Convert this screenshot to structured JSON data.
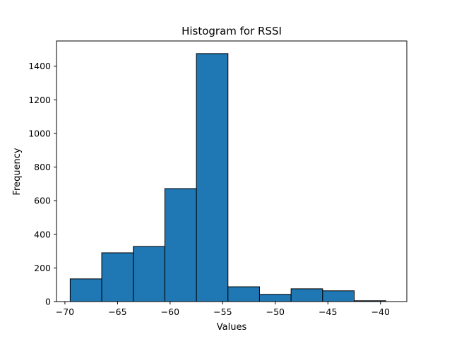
{
  "chart_data": {
    "type": "bar",
    "title": "Histogram for RSSI",
    "xlabel": "Values",
    "ylabel": "Frequency",
    "xlim": [
      -70.8,
      -37.5
    ],
    "ylim": [
      0,
      1550
    ],
    "xticks": [
      -70,
      -65,
      -60,
      -55,
      -50,
      -45,
      -40
    ],
    "yticks": [
      0,
      200,
      400,
      600,
      800,
      1000,
      1200,
      1400
    ],
    "bin_edges": [
      -69.5,
      -66.5,
      -63.5,
      -60.5,
      -57.5,
      -54.5,
      -51.5,
      -48.5,
      -45.5,
      -42.5,
      -39.5
    ],
    "values": [
      135,
      290,
      328,
      672,
      1475,
      88,
      43,
      76,
      64,
      5
    ],
    "bar_color": "#1f77b4",
    "edge_color": "#000000",
    "grid": false,
    "legend": "none"
  }
}
